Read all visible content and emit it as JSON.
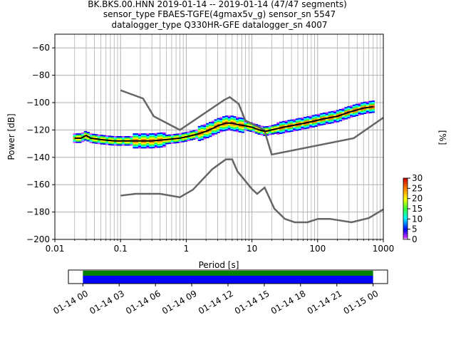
{
  "chart_data": {
    "type": "heatmap",
    "title_lines": [
      "BK.BKS.00.HNN   2019-01-14 -- 2019-01-14  (47/47 segments)",
      "sensor_type FBAES-TGFE(4gmax5v_g) sensor_sn 5547",
      "datalogger_type Q330HR-GFE datalogger_sn 4007"
    ],
    "xlabel": "Period [s]",
    "ylabel": "Power [dB]",
    "xscale": "log",
    "xlim": [
      0.01,
      1000
    ],
    "ylim": [
      -200,
      -50
    ],
    "x_ticks": [
      0.01,
      0.1,
      1,
      10,
      100,
      1000
    ],
    "x_tick_labels": [
      "0.01",
      "0.1",
      "1",
      "10",
      "100",
      "1000"
    ],
    "y_ticks": [
      -200,
      -180,
      -160,
      -140,
      -120,
      -100,
      -80,
      -60
    ],
    "y_tick_labels": [
      "−200",
      "−180",
      "−160",
      "−140",
      "−120",
      "−100",
      "−80",
      "−60"
    ],
    "grid": true,
    "colorbar": {
      "label": "[%]",
      "ticks": [
        0,
        5,
        10,
        15,
        20,
        25,
        30
      ],
      "tick_labels": [
        "0",
        "5",
        "10",
        "15",
        "20",
        "25",
        "30"
      ],
      "range": [
        0,
        30
      ]
    },
    "noise_model_high": {
      "x": [
        0.1,
        0.22,
        0.32,
        0.8,
        3.8,
        4.6,
        6.3,
        7.9,
        15.4,
        20,
        354.8,
        1000
      ],
      "y": [
        -91,
        -97,
        -110,
        -120,
        -98,
        -96,
        -101,
        -113,
        -120,
        -138,
        -126,
        -111
      ]
    },
    "noise_model_low": {
      "x": [
        0.1,
        0.17,
        0.4,
        0.8,
        1.26,
        2.5,
        4.0,
        5.0,
        6.0,
        10.0,
        12.0,
        15.6,
        21.9,
        31.6,
        45,
        70,
        101,
        154,
        328,
        600,
        1000
      ],
      "y": [
        -168,
        -166.7,
        -166.7,
        -169.2,
        -163.7,
        -148.6,
        -141.5,
        -141.5,
        -150.2,
        -163.2,
        -166.7,
        -162.1,
        -177.5,
        -185,
        -187.5,
        -187.5,
        -185,
        -185,
        -187.5,
        -184.4,
        -178
      ]
    },
    "mode_line": {
      "x": [
        0.02,
        0.025,
        0.03,
        0.035,
        0.05,
        0.08,
        0.12,
        0.2,
        0.3,
        0.5,
        0.8,
        1.0,
        1.5,
        2.0,
        2.5,
        3.0,
        4.0,
        5.0,
        6.0,
        8.0,
        10,
        13,
        16,
        20,
        30,
        50,
        80,
        120,
        200,
        300,
        500,
        700
      ],
      "y": [
        -126,
        -126,
        -124,
        -126,
        -127,
        -128,
        -128,
        -128,
        -128,
        -127,
        -126,
        -125,
        -123,
        -121,
        -119,
        -117,
        -115,
        -115,
        -116,
        -117,
        -118,
        -120,
        -121,
        -120,
        -118,
        -116,
        -114,
        -112,
        -110,
        -107,
        -104,
        -103
      ]
    },
    "time_axis": {
      "tick_labels": [
        "01-14 00",
        "01-14 03",
        "01-14 06",
        "01-14 09",
        "01-14 12",
        "01-14 15",
        "01-14 18",
        "01-14 21",
        "01-15 00"
      ],
      "range_hours": [
        -1.2,
        25.2
      ],
      "data_coverage_hours": [
        0,
        24
      ],
      "gap_coverage_hours": [
        0,
        24
      ],
      "colors": {
        "data": "#0000ff",
        "gaps": "#008000"
      }
    }
  }
}
